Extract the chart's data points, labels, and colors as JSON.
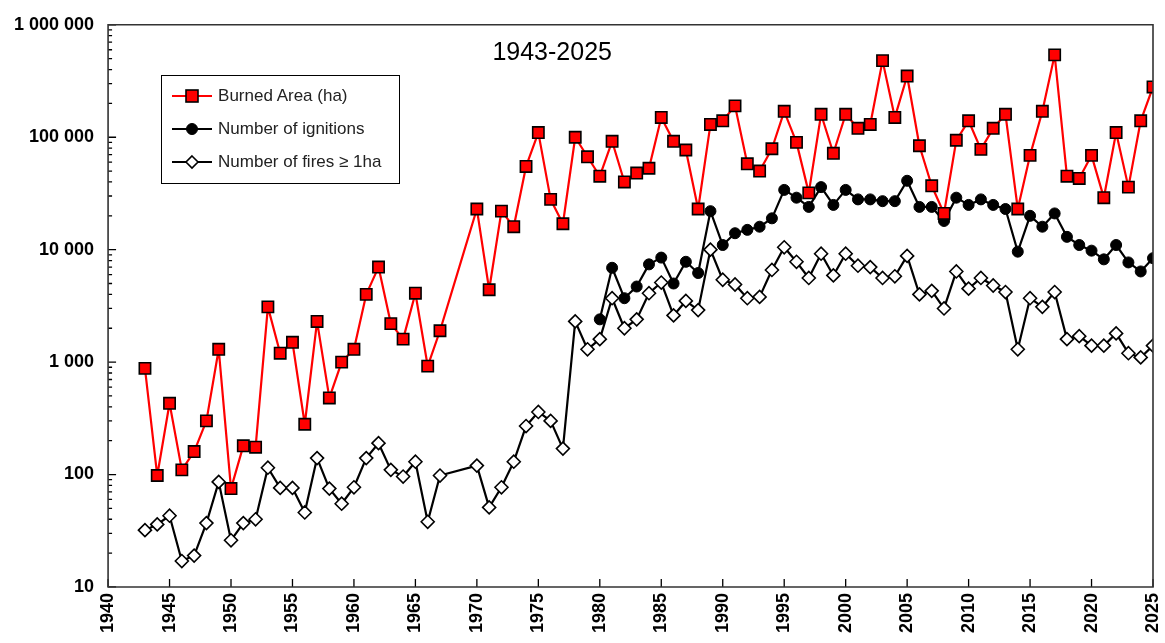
{
  "chart_data": {
    "type": "line",
    "title": "1943-2025",
    "log": "y",
    "grid": false,
    "legend": "top left",
    "xlim": [
      1940,
      2025
    ],
    "xticks": [
      1940,
      1945,
      1950,
      1955,
      1960,
      1965,
      1970,
      1975,
      1980,
      1985,
      1990,
      1995,
      2000,
      2005,
      2010,
      2015,
      2020,
      2025
    ],
    "ylim": [
      10,
      1000000
    ],
    "yticks": [
      10,
      {
        "value": 20,
        "label": null
      },
      {
        "value": 30,
        "label": null
      },
      {
        "value": 40,
        "label": null
      },
      {
        "value": 50,
        "label": null
      },
      {
        "value": 60,
        "label": null
      },
      {
        "value": 70,
        "label": null
      },
      {
        "value": 80,
        "label": null
      },
      {
        "value": 90,
        "label": null
      },
      100,
      {
        "value": 200,
        "label": null
      },
      {
        "value": 300,
        "label": null
      },
      {
        "value": 400,
        "label": null
      },
      {
        "value": 500,
        "label": null
      },
      {
        "value": 600,
        "label": null
      },
      {
        "value": 700,
        "label": null
      },
      {
        "value": 800,
        "label": null
      },
      {
        "value": 900,
        "label": null
      },
      {
        "value": 1000,
        "label": "1 000"
      },
      {
        "value": 2000,
        "label": null
      },
      {
        "value": 3000,
        "label": null
      },
      {
        "value": 4000,
        "label": null
      },
      {
        "value": 5000,
        "label": null
      },
      {
        "value": 6000,
        "label": null
      },
      {
        "value": 7000,
        "label": null
      },
      {
        "value": 8000,
        "label": null
      },
      {
        "value": 9000,
        "label": null
      },
      {
        "value": 10000,
        "label": "10 000"
      },
      {
        "value": 20000,
        "label": null
      },
      {
        "value": 30000,
        "label": null
      },
      {
        "value": 40000,
        "label": null
      },
      {
        "value": 50000,
        "label": null
      },
      {
        "value": 60000,
        "label": null
      },
      {
        "value": 70000,
        "label": null
      },
      {
        "value": 80000,
        "label": null
      },
      {
        "value": 90000,
        "label": null
      },
      {
        "value": 100000,
        "label": "100 000"
      },
      {
        "value": 200000,
        "label": null
      },
      {
        "value": 300000,
        "label": null
      },
      {
        "value": 400000,
        "label": null
      },
      {
        "value": 500000,
        "label": null
      },
      {
        "value": 600000,
        "label": null
      },
      {
        "value": 700000,
        "label": null
      },
      {
        "value": 800000,
        "label": null
      },
      {
        "value": 900000,
        "label": null
      },
      {
        "value": 1000000,
        "label": "1 000 000"
      }
    ],
    "series": [
      {
        "name": "Burned Area (ha)",
        "color": "#ff0000",
        "marker": "square",
        "x": [
          1943,
          1944,
          1945,
          1946,
          1947,
          1948,
          1949,
          1950,
          1951,
          1952,
          1953,
          1954,
          1955,
          1956,
          1957,
          1958,
          1959,
          1960,
          1961,
          1962,
          1963,
          1964,
          1965,
          1966,
          1967,
          1970,
          1971,
          1972,
          1973,
          1974,
          1975,
          1976,
          1977,
          1978,
          1979,
          1980,
          1981,
          1982,
          1983,
          1984,
          1985,
          1986,
          1987,
          1988,
          1989,
          1990,
          1991,
          1992,
          1993,
          1994,
          1995,
          1996,
          1997,
          1998,
          1999,
          2000,
          2001,
          2002,
          2003,
          2004,
          2005,
          2006,
          2007,
          2008,
          2009,
          2010,
          2011,
          2012,
          2013,
          2014,
          2015,
          2016,
          2017,
          2018,
          2019,
          2020,
          2021,
          2022,
          2023,
          2024,
          2025
        ],
        "values": [
          880,
          98,
          430,
          110,
          160,
          300,
          1300,
          75,
          180,
          175,
          3100,
          1200,
          1500,
          280,
          2300,
          480,
          1000,
          1300,
          4000,
          7000,
          2200,
          1600,
          4100,
          920,
          1900,
          23000,
          4400,
          22000,
          16000,
          55000,
          110000,
          28000,
          17000,
          100000,
          67000,
          45000,
          92000,
          40000,
          48000,
          53000,
          150000,
          92000,
          77000,
          23000,
          130000,
          140000,
          190000,
          58000,
          50000,
          79000,
          170000,
          90000,
          32000,
          160000,
          72000,
          160000,
          120000,
          130000,
          480000,
          150000,
          350000,
          84000,
          37000,
          21000,
          94000,
          140000,
          78000,
          120000,
          160000,
          23000,
          69000,
          170000,
          540000,
          45000,
          43000,
          69000,
          29000,
          110000,
          36000,
          140000,
          280000
        ]
      },
      {
        "name": "Number of ignitions",
        "color": "#000000",
        "marker": "circle",
        "x": [
          1980,
          1981,
          1982,
          1983,
          1984,
          1985,
          1986,
          1987,
          1988,
          1989,
          1990,
          1991,
          1992,
          1993,
          1994,
          1995,
          1996,
          1997,
          1998,
          1999,
          2000,
          2001,
          2002,
          2003,
          2004,
          2005,
          2006,
          2007,
          2008,
          2009,
          2010,
          2011,
          2012,
          2013,
          2014,
          2015,
          2016,
          2017,
          2018,
          2019,
          2020,
          2021,
          2022,
          2023,
          2024,
          2025
        ],
        "values": [
          2400,
          6900,
          3700,
          4700,
          7400,
          8500,
          5000,
          7800,
          6200,
          22000,
          11000,
          14000,
          15000,
          16000,
          19000,
          34000,
          29000,
          24000,
          36000,
          25000,
          34000,
          28000,
          28000,
          27000,
          27000,
          41000,
          24000,
          24000,
          18000,
          29000,
          25000,
          28000,
          25000,
          23000,
          9600,
          20000,
          16000,
          21000,
          13000,
          11000,
          9800,
          8200,
          11000,
          7700,
          6400,
          8400
        ]
      },
      {
        "name": "Number of fires ≥ 1ha",
        "color": "#000000",
        "marker": "diamond",
        "x": [
          1943,
          1944,
          1945,
          1946,
          1947,
          1948,
          1949,
          1950,
          1951,
          1952,
          1953,
          1954,
          1955,
          1956,
          1957,
          1958,
          1959,
          1960,
          1961,
          1962,
          1963,
          1964,
          1965,
          1966,
          1967,
          1970,
          1971,
          1972,
          1973,
          1974,
          1975,
          1976,
          1977,
          1978,
          1979,
          1980,
          1981,
          1982,
          1983,
          1984,
          1985,
          1986,
          1987,
          1988,
          1989,
          1990,
          1991,
          1992,
          1993,
          1994,
          1995,
          1996,
          1997,
          1998,
          1999,
          2000,
          2001,
          2002,
          2003,
          2004,
          2005,
          2006,
          2007,
          2008,
          2009,
          2010,
          2011,
          2012,
          2013,
          2014,
          2015,
          2016,
          2017,
          2018,
          2019,
          2020,
          2021,
          2022,
          2023,
          2024,
          2025
        ],
        "values": [
          32,
          36,
          43,
          17,
          19,
          37,
          86,
          26,
          37,
          40,
          115,
          76,
          76,
          46,
          140,
          75,
          55,
          77,
          140,
          190,
          110,
          96,
          130,
          38,
          98,
          120,
          51,
          77,
          130,
          270,
          360,
          300,
          170,
          2300,
          1300,
          1600,
          3700,
          2000,
          2400,
          4100,
          5100,
          2600,
          3500,
          2900,
          10000,
          5400,
          4900,
          3700,
          3800,
          6600,
          10500,
          7800,
          5600,
          9200,
          5900,
          9200,
          7200,
          7000,
          5600,
          5800,
          8800,
          4000,
          4300,
          3000,
          6400,
          4500,
          5600,
          4800,
          4200,
          1300,
          3700,
          3100,
          4200,
          1600,
          1700,
          1400,
          1400,
          1800,
          1200,
          1100,
          1400
        ]
      }
    ]
  }
}
